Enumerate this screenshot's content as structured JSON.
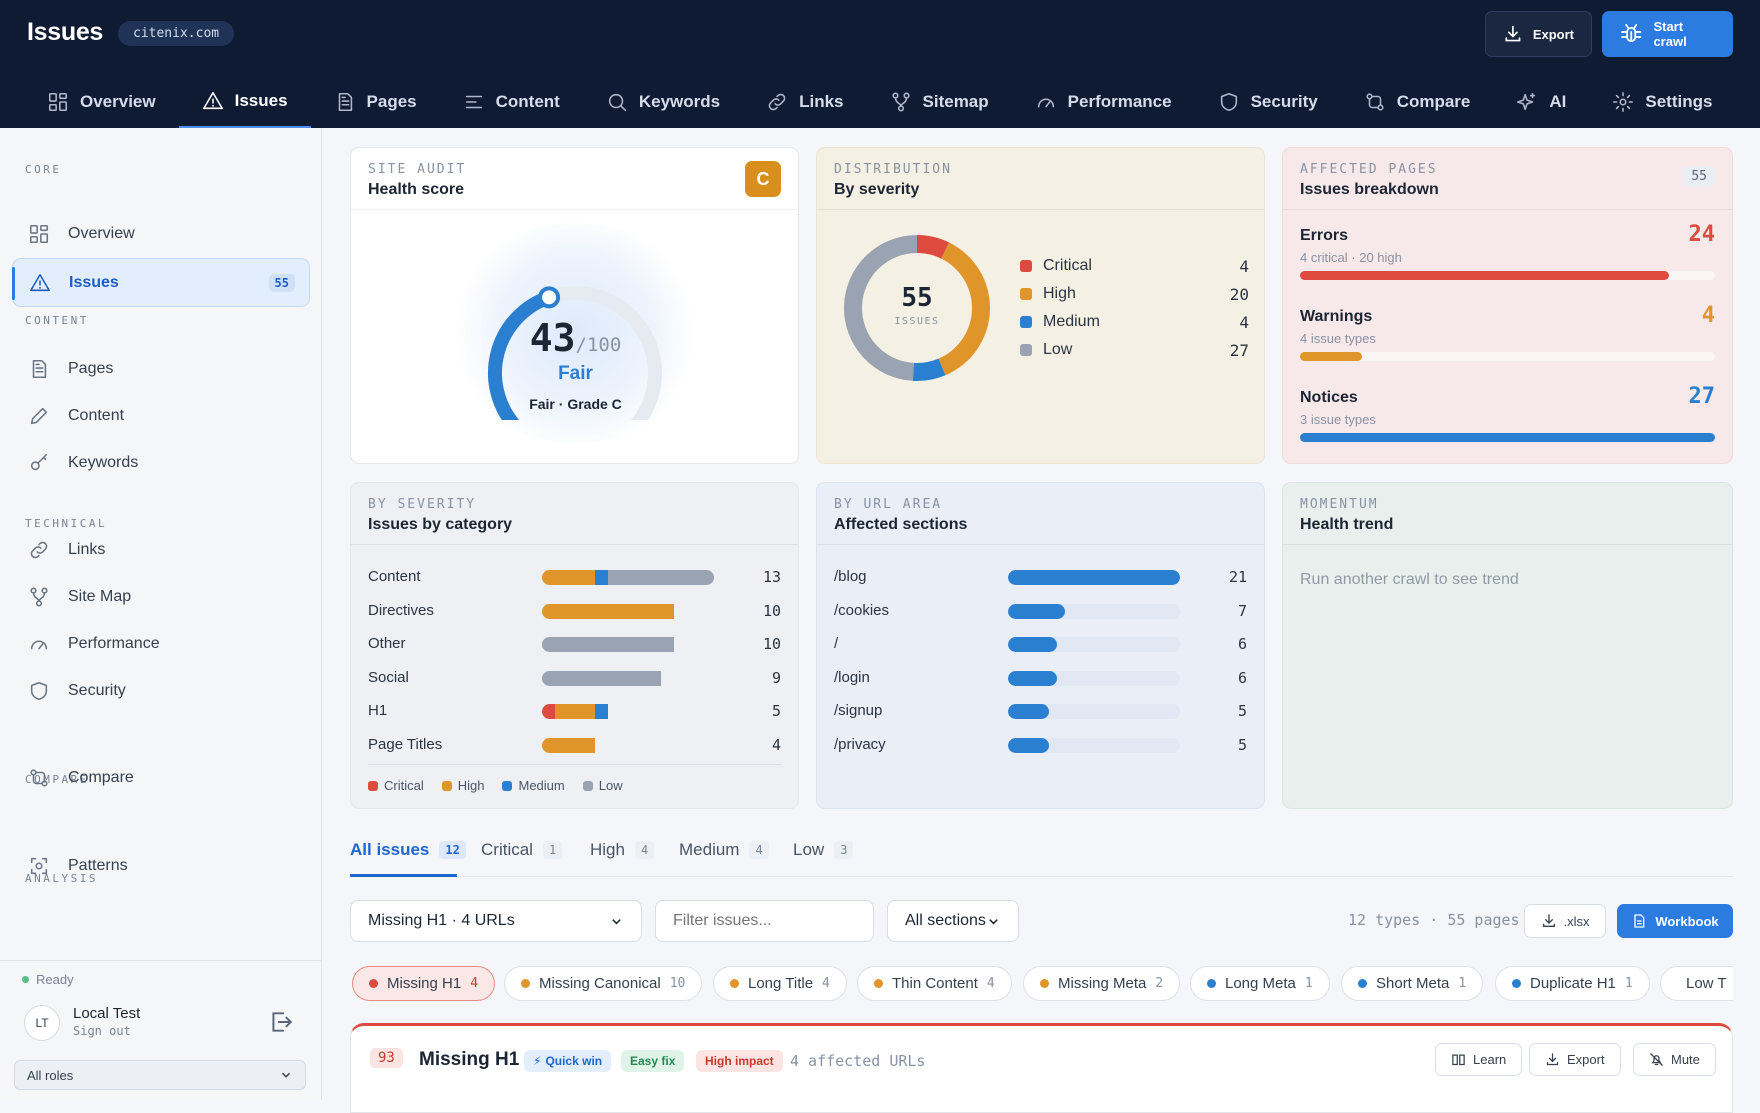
{
  "header": {
    "title": "Issues",
    "domain": "citenix.com",
    "export_label": "Export",
    "crawl_label": "Start crawl"
  },
  "nav_tabs": [
    {
      "label": "Overview",
      "icon": "grid-icon"
    },
    {
      "label": "Issues",
      "icon": "warning-icon"
    },
    {
      "label": "Pages",
      "icon": "document-icon"
    },
    {
      "label": "Content",
      "icon": "lines-icon"
    },
    {
      "label": "Keywords",
      "icon": "search-icon"
    },
    {
      "label": "Links",
      "icon": "link-icon"
    },
    {
      "label": "Sitemap",
      "icon": "sitemap-icon"
    },
    {
      "label": "Performance",
      "icon": "gauge-icon"
    },
    {
      "label": "Security",
      "icon": "shield-icon"
    },
    {
      "label": "Compare",
      "icon": "compare-icon"
    },
    {
      "label": "AI",
      "icon": "sparkle-icon"
    },
    {
      "label": "Settings",
      "icon": "gear-icon"
    }
  ],
  "sidebar": {
    "sections": [
      "CORE",
      "CONTENT",
      "TECHNICAL",
      "COMPARE",
      "ANALYSIS"
    ],
    "items": [
      {
        "label": "Overview"
      },
      {
        "label": "Issues",
        "badge": "55"
      },
      {
        "label": "Pages"
      },
      {
        "label": "Content"
      },
      {
        "label": "Keywords"
      },
      {
        "label": "Links"
      },
      {
        "label": "Site Map"
      },
      {
        "label": "Performance"
      },
      {
        "label": "Security"
      },
      {
        "label": "Compare"
      },
      {
        "label": "Patterns"
      }
    ],
    "status": "Ready",
    "user_initials": "LT",
    "user_name": "Local Test",
    "sign_out": "Sign out",
    "roles_select": "All roles"
  },
  "health": {
    "tag": "SITE AUDIT",
    "title": "Health score",
    "grade": "C",
    "score": "43",
    "max": "/100",
    "status": "Fair",
    "subtitle": "Fair · Grade C",
    "score_fraction": 0.43
  },
  "distribution": {
    "tag": "DISTRIBUTION",
    "title": "By severity",
    "total": "55",
    "total_label": "ISSUES"
  },
  "affected": {
    "tag": "AFFECTED PAGES",
    "title": "Issues breakdown",
    "badge": "55",
    "rows": [
      {
        "label": "Errors",
        "sub": "4 critical · 20 high",
        "value": "24",
        "fill": 0.89,
        "color": "#dc4b3e"
      },
      {
        "label": "Warnings",
        "sub": "4 issue types",
        "value": "4",
        "fill": 0.15,
        "color": "#e0952b"
      },
      {
        "label": "Notices",
        "sub": "3 issue types",
        "value": "27",
        "fill": 1.0,
        "color": "#2a7fd0"
      }
    ]
  },
  "by_severity": {
    "tag": "BY SEVERITY",
    "title": "Issues by category",
    "legend": [
      "Critical",
      "High",
      "Medium",
      "Low"
    ]
  },
  "by_url": {
    "tag": "BY URL AREA",
    "title": "Affected sections"
  },
  "momentum": {
    "tag": "MOMENTUM",
    "title": "Health trend",
    "empty": "Run another crawl to see trend"
  },
  "filters": {
    "tabs": [
      {
        "label": "All issues",
        "count": "12"
      },
      {
        "label": "Critical",
        "count": "1"
      },
      {
        "label": "High",
        "count": "4"
      },
      {
        "label": "Medium",
        "count": "4"
      },
      {
        "label": "Low",
        "count": "3"
      }
    ],
    "issue_select": "Missing H1 · 4 URLs",
    "search_placeholder": "Filter issues...",
    "section_select": "All sections",
    "summary": "12 types · 55 pages",
    "xlsx_label": ".xlsx",
    "workbook_label": "Workbook"
  },
  "chips": [
    {
      "label": "Missing H1",
      "count": "4",
      "color": "#dc4b3e"
    },
    {
      "label": "Missing Canonical",
      "count": "10",
      "color": "#e0952b"
    },
    {
      "label": "Long Title",
      "count": "4",
      "color": "#e0952b"
    },
    {
      "label": "Thin Content",
      "count": "4",
      "color": "#e0952b"
    },
    {
      "label": "Missing Meta",
      "count": "2",
      "color": "#e0952b"
    },
    {
      "label": "Long Meta",
      "count": "1",
      "color": "#2a7fd0"
    },
    {
      "label": "Short Meta",
      "count": "1",
      "color": "#2a7fd0"
    },
    {
      "label": "Duplicate H1",
      "count": "1",
      "color": "#2a7fd0"
    },
    {
      "label": "Low T",
      "count": "",
      "color": "#2a7fd0"
    }
  ],
  "issue_panel": {
    "score": "93",
    "title": "Missing H1",
    "quick_win": "Quick win",
    "easy_fix": "Easy fix",
    "impact": "High impact",
    "affected": "4 affected URLs",
    "learn": "Learn",
    "export": "Export",
    "mute": "Mute"
  },
  "chart_data": [
    {
      "type": "pie",
      "title": "By severity",
      "categories": [
        "Critical",
        "High",
        "Medium",
        "Low"
      ],
      "values": [
        4,
        20,
        4,
        27
      ],
      "colors": [
        "#dc4b3e",
        "#e0952b",
        "#2a7fd0",
        "#9aa3b1"
      ]
    },
    {
      "type": "bar",
      "title": "Issues by category",
      "categories": [
        "Content",
        "Directives",
        "Other",
        "Social",
        "H1",
        "Page Titles"
      ],
      "series": [
        {
          "name": "Critical",
          "values": [
            0,
            0,
            0,
            0,
            1,
            0
          ]
        },
        {
          "name": "High",
          "values": [
            4,
            10,
            0,
            0,
            3,
            4
          ]
        },
        {
          "name": "Medium",
          "values": [
            1,
            0,
            0,
            0,
            1,
            0
          ]
        },
        {
          "name": "Low",
          "values": [
            8,
            0,
            10,
            9,
            0,
            0
          ]
        }
      ],
      "totals": [
        13,
        10,
        10,
        9,
        5,
        4
      ],
      "colors": [
        "#dc4b3e",
        "#e0952b",
        "#2a7fd0",
        "#9aa3b1"
      ]
    },
    {
      "type": "bar",
      "title": "Affected sections",
      "categories": [
        "/blog",
        "/cookies",
        "/",
        "/login",
        "/signup",
        "/privacy"
      ],
      "values": [
        21,
        7,
        6,
        6,
        5,
        5
      ],
      "color": "#2a7fd0"
    }
  ]
}
